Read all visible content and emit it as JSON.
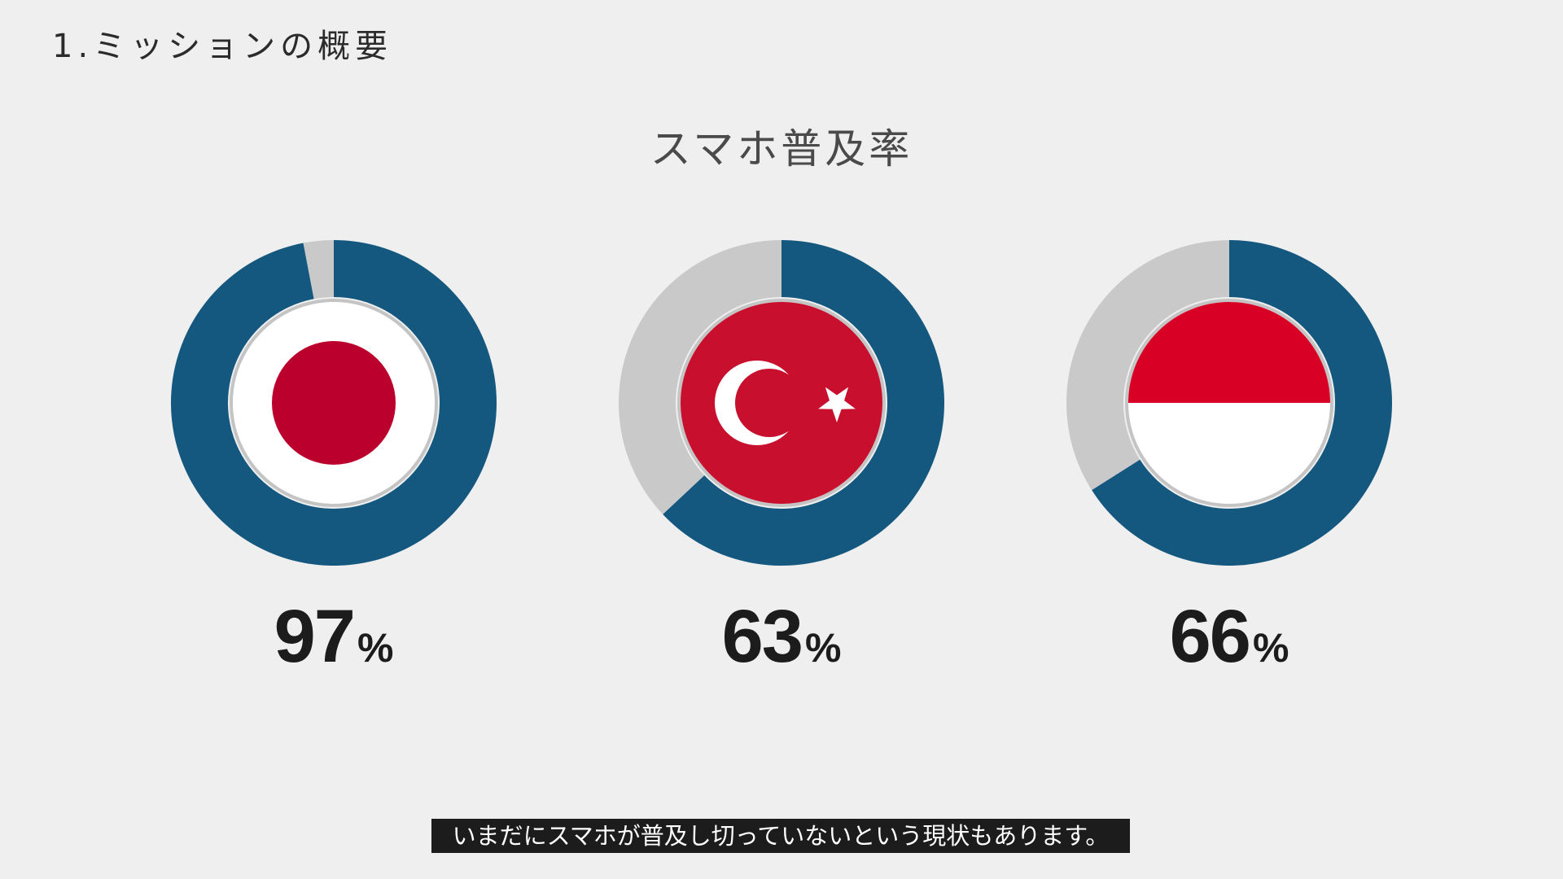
{
  "header": {
    "section_title": "1.ミッションの概要"
  },
  "chart_data": {
    "type": "donut",
    "title": "スマホ普及率",
    "series": [
      {
        "flag": "japan-flag-icon",
        "value": 97,
        "unit": "%"
      },
      {
        "flag": "turkey-flag-icon",
        "value": 63,
        "unit": "%"
      },
      {
        "flag": "indonesia-flag-icon",
        "value": 66,
        "unit": "%"
      }
    ],
    "max": 100
  },
  "colors": {
    "filled": "#14577f",
    "remaining": "#c9c9c9",
    "background": "#efefef",
    "japan_red": "#bc002d",
    "turkey_red": "#c8102e",
    "indonesia_red": "#d90026"
  },
  "caption": {
    "text": "いまだにスマホが普及し切っていないという現状もあります。"
  }
}
